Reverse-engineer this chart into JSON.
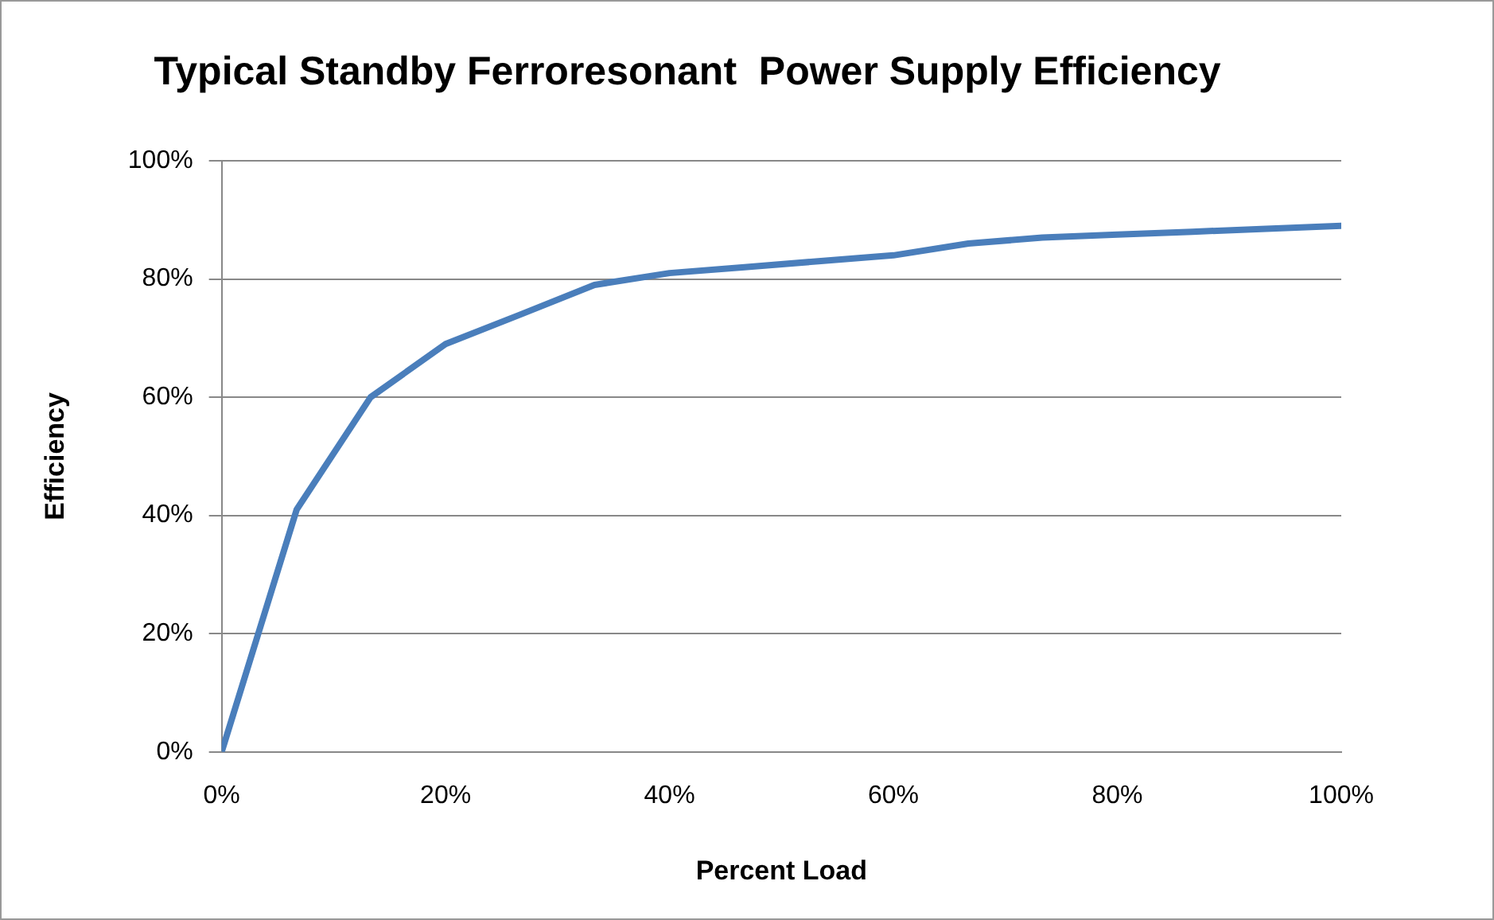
{
  "chart_data": {
    "type": "line",
    "title": "Typical Standby Ferroresonant  Power Supply Efficiency",
    "xlabel": "Percent Load",
    "ylabel": "Efficiency",
    "x": [
      0,
      6.7,
      13.3,
      20,
      26.7,
      33.3,
      40,
      46.7,
      53.3,
      60,
      66.7,
      73.3,
      80,
      86.7,
      93.3,
      100
    ],
    "series": [
      {
        "color": "#4a7ebb",
        "values": [
          0,
          41,
          60,
          69,
          74,
          79,
          81,
          82,
          83,
          84,
          86,
          87,
          87.5,
          88,
          88.5,
          89
        ]
      }
    ],
    "xlim": [
      0,
      100
    ],
    "ylim": [
      0,
      100
    ],
    "xticks": [
      {
        "value": 0,
        "label": "0%"
      },
      {
        "value": 20,
        "label": "20%"
      },
      {
        "value": 40,
        "label": "40%"
      },
      {
        "value": 60,
        "label": "60%"
      },
      {
        "value": 80,
        "label": "80%"
      },
      {
        "value": 100,
        "label": "100%"
      }
    ],
    "yticks": [
      {
        "value": 0,
        "label": "0%"
      },
      {
        "value": 20,
        "label": "20%"
      },
      {
        "value": 40,
        "label": "40%"
      },
      {
        "value": 60,
        "label": "60%"
      },
      {
        "value": 80,
        "label": "80%"
      },
      {
        "value": 100,
        "label": "100%"
      }
    ],
    "grid": "y",
    "legend": false,
    "marker": "none",
    "line_style": "solid"
  }
}
